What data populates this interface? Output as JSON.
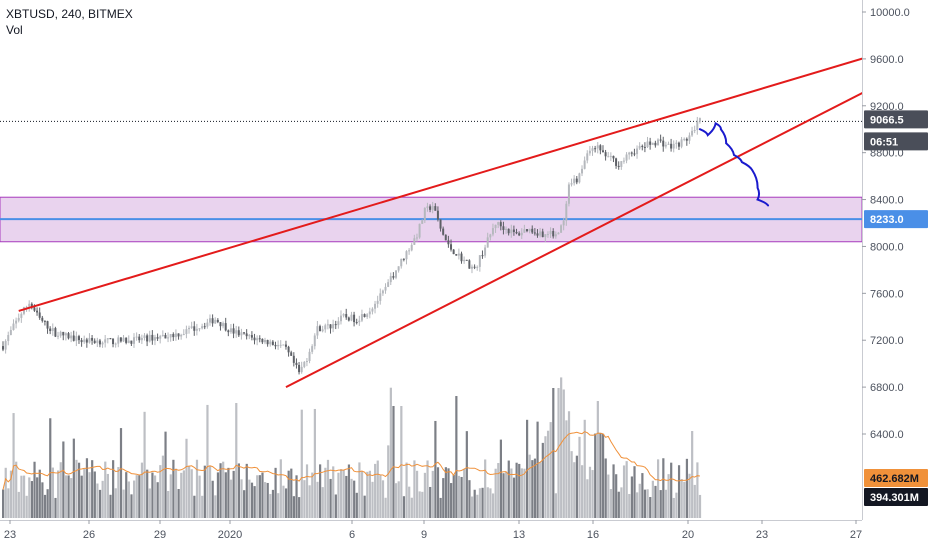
{
  "header": {
    "symbol": "XBTUSD, 240, BITMEX",
    "indicator": "Vol"
  },
  "colors": {
    "up": "#b5b8bd",
    "down": "#5d6066",
    "trendline": "#e31b1b",
    "zone_fill": "#e9d3ee",
    "zone_border": "#a83bbd",
    "support_line": "#4a8fe7",
    "drawing": "#1a1acd",
    "vol_ma": "#f0913a",
    "badge_dark": "#4a4e59",
    "badge_blue": "#4a8fe7",
    "badge_orange": "#f0913a",
    "badge_black": "#131722"
  },
  "chart_data": {
    "type": "candlestick",
    "title": "XBTUSD, 240, BITMEX",
    "price_axis": {
      "min": 5800,
      "max": 10200,
      "ticks": [
        "10000.0",
        "9600.0",
        "9200.0",
        "8800.0",
        "8400.0",
        "8000.0",
        "7600.0",
        "7200.0",
        "6800.0",
        "6400.0"
      ]
    },
    "x_labels": [
      "23",
      "26",
      "29",
      "2020",
      "6",
      "9",
      "13",
      "16",
      "20",
      "23",
      "27"
    ],
    "price_anchors": [
      [
        0,
        7150
      ],
      [
        6,
        7400
      ],
      [
        10,
        7520
      ],
      [
        14,
        7380
      ],
      [
        20,
        7260
      ],
      [
        30,
        7200
      ],
      [
        40,
        7190
      ],
      [
        50,
        7200
      ],
      [
        60,
        7230
      ],
      [
        68,
        7260
      ],
      [
        75,
        7320
      ],
      [
        81,
        7380
      ],
      [
        87,
        7280
      ],
      [
        93,
        7230
      ],
      [
        99,
        7200
      ],
      [
        105,
        7160
      ],
      [
        108,
        7120
      ],
      [
        111,
        7000
      ],
      [
        113,
        6920
      ],
      [
        116,
        7050
      ],
      [
        120,
        7300
      ],
      [
        125,
        7320
      ],
      [
        130,
        7400
      ],
      [
        135,
        7380
      ],
      [
        140,
        7460
      ],
      [
        145,
        7600
      ],
      [
        150,
        7800
      ],
      [
        154,
        7950
      ],
      [
        158,
        8100
      ],
      [
        161,
        8300
      ],
      [
        164,
        8350
      ],
      [
        167,
        8150
      ],
      [
        170,
        8000
      ],
      [
        175,
        7900
      ],
      [
        180,
        7800
      ],
      [
        184,
        8000
      ],
      [
        188,
        8200
      ],
      [
        192,
        8150
      ],
      [
        196,
        8100
      ],
      [
        200,
        8150
      ],
      [
        204,
        8120
      ],
      [
        208,
        8100
      ],
      [
        212,
        8120
      ],
      [
        214,
        8200
      ],
      [
        216,
        8500
      ],
      [
        220,
        8600
      ],
      [
        223,
        8800
      ],
      [
        226,
        8860
      ],
      [
        230,
        8780
      ],
      [
        235,
        8700
      ],
      [
        240,
        8800
      ],
      [
        245,
        8860
      ],
      [
        250,
        8900
      ],
      [
        255,
        8850
      ],
      [
        260,
        8900
      ],
      [
        264,
        8980
      ],
      [
        266,
        9100
      ]
    ],
    "candle_count": 267,
    "volume_ma_label": "462.682M",
    "volume_label": "394.301M",
    "last_price": "9066.5",
    "countdown": "06:51",
    "support_level": "8233.0",
    "support_price": 8233,
    "resistance_zone": {
      "top": 8420,
      "bottom": 8040
    },
    "last_price_value": 9066.5,
    "trendlines": [
      {
        "name": "upper",
        "from": {
          "bar": 6,
          "price": 7450
        },
        "to": {
          "bar": 350,
          "price": 9750
        }
      },
      {
        "name": "lower",
        "from": {
          "bar": 108,
          "price": 6800
        },
        "to": {
          "bar": 350,
          "price": 9560
        }
      }
    ],
    "drawn_path_prices": [
      [
        266,
        9000
      ],
      [
        269,
        8950
      ],
      [
        272,
        9050
      ],
      [
        274,
        9000
      ],
      [
        276,
        8880
      ],
      [
        279,
        8780
      ],
      [
        282,
        8720
      ],
      [
        286,
        8650
      ],
      [
        288,
        8500
      ],
      [
        288,
        8400
      ],
      [
        292,
        8350
      ]
    ]
  }
}
